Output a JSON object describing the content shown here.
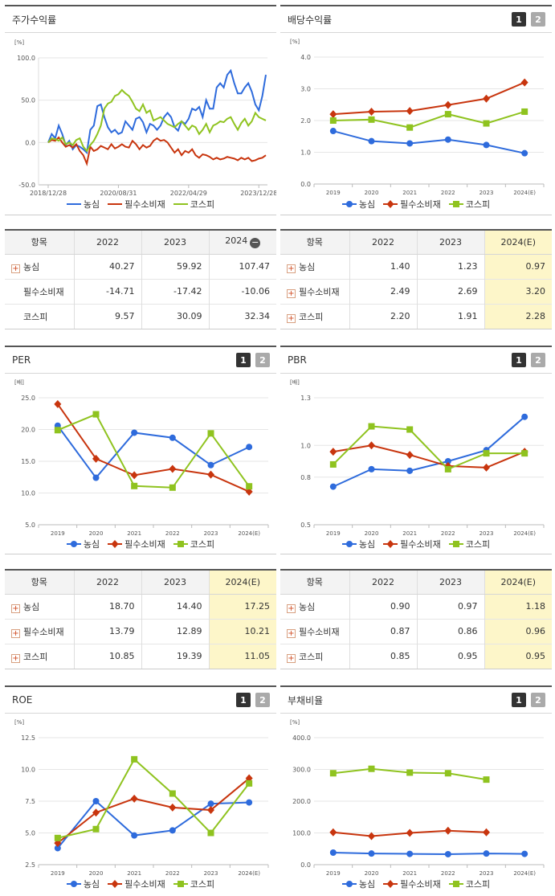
{
  "colors": {
    "nongshim": "#2e6bdc",
    "consumer": "#c8350e",
    "kospi": "#8fc31f"
  },
  "panels": [
    {
      "id": "stock",
      "title": "주가수익률",
      "tabs": [],
      "legend": [
        "농심",
        "필수소비재",
        "코스피"
      ],
      "chart_data": {
        "type": "line",
        "unit": "[%]",
        "ylim": [
          -50,
          100
        ],
        "yticks": [
          "100.0",
          "50.0",
          "0.0",
          "-50.0"
        ],
        "xticks": [
          "2018/12/28",
          "2020/08/31",
          "2022/04/29",
          "2023/12/28"
        ],
        "series": [
          {
            "name": "농심",
            "values": [
              0,
              10,
              5,
              20,
              10,
              -3,
              2,
              -8,
              -3,
              -5,
              -8,
              -12,
              15,
              20,
              43,
              45,
              30,
              18,
              12,
              15,
              10,
              12,
              25,
              20,
              15,
              28,
              30,
              24,
              12,
              22,
              20,
              15,
              20,
              30,
              35,
              30,
              18,
              14,
              25,
              22,
              28,
              40,
              38,
              42,
              30,
              50,
              40,
              40,
              65,
              70,
              65,
              80,
              85,
              70,
              58,
              58,
              65,
              70,
              60,
              45,
              38,
              55,
              80
            ]
          },
          {
            "name": "필수소비재",
            "values": [
              0,
              3,
              2,
              6,
              0,
              -5,
              -3,
              -6,
              -2,
              -10,
              -15,
              -25,
              -5,
              -10,
              -8,
              -4,
              -6,
              -8,
              -2,
              -7,
              -5,
              -2,
              -5,
              -6,
              2,
              -2,
              -8,
              -3,
              -6,
              -4,
              2,
              5,
              2,
              3,
              0,
              -6,
              -12,
              -8,
              -15,
              -10,
              -12,
              -8,
              -15,
              -18,
              -14,
              -15,
              -17,
              -20,
              -18,
              -20,
              -19,
              -17,
              -18,
              -19,
              -21,
              -18,
              -20,
              -18,
              -22,
              -21,
              -19,
              -18,
              -15
            ]
          },
          {
            "name": "코스피",
            "values": [
              0,
              5,
              4,
              2,
              6,
              -2,
              0,
              -3,
              3,
              5,
              -5,
              -10,
              -3,
              2,
              10,
              20,
              40,
              46,
              48,
              55,
              57,
              62,
              58,
              55,
              48,
              40,
              37,
              45,
              35,
              38,
              26,
              28,
              30,
              26,
              22,
              20,
              18,
              22,
              25,
              20,
              15,
              20,
              18,
              10,
              15,
              22,
              12,
              20,
              22,
              25,
              24,
              28,
              30,
              22,
              15,
              23,
              28,
              20,
              25,
              35,
              30,
              28,
              26
            ]
          }
        ]
      }
    },
    {
      "id": "dividend",
      "title": "배당수익률",
      "tabs": [
        "1",
        "2"
      ],
      "legend": [
        "농심",
        "필수소비재",
        "코스피"
      ],
      "chart_data": {
        "type": "line",
        "unit": "[%]",
        "ylim": [
          0,
          4
        ],
        "yticks": [
          "4.0",
          "3.0",
          "2.0",
          "1.0",
          "0.0"
        ],
        "categories": [
          "2019",
          "2020",
          "2021",
          "2022",
          "2023",
          "2024(E)"
        ],
        "series": [
          {
            "name": "농심",
            "values": [
              1.67,
              1.35,
              1.28,
              1.4,
              1.23,
              0.97
            ]
          },
          {
            "name": "필수소비재",
            "values": [
              2.2,
              2.28,
              2.3,
              2.49,
              2.69,
              3.2
            ]
          },
          {
            "name": "코스피",
            "values": [
              2.0,
              2.03,
              1.78,
              2.2,
              1.91,
              2.28
            ]
          }
        ]
      }
    },
    {
      "id": "per",
      "title": "PER",
      "tabs": [
        "1",
        "2"
      ],
      "legend": [
        "농심",
        "필수소비재",
        "코스피"
      ],
      "chart_data": {
        "type": "line",
        "unit": "[배]",
        "ylim": [
          5,
          25
        ],
        "yticks": [
          "25.0",
          "20.0",
          "15.0",
          "10.0",
          "5.0"
        ],
        "categories": [
          "2019",
          "2020",
          "2021",
          "2022",
          "2023",
          "2024(E)"
        ],
        "series": [
          {
            "name": "농심",
            "values": [
              20.6,
              12.4,
              19.5,
              18.7,
              14.4,
              17.25
            ]
          },
          {
            "name": "필수소비재",
            "values": [
              24.0,
              15.4,
              12.8,
              13.79,
              12.89,
              10.21
            ]
          },
          {
            "name": "코스피",
            "values": [
              19.9,
              22.4,
              11.1,
              10.85,
              19.39,
              11.05
            ]
          }
        ]
      }
    },
    {
      "id": "pbr",
      "title": "PBR",
      "tabs": [
        "1",
        "2"
      ],
      "legend": [
        "농심",
        "필수소비재",
        "코스피"
      ],
      "chart_data": {
        "type": "line",
        "unit": "[배]",
        "ylim": [
          0.5,
          1.3
        ],
        "yticks": [
          "1.3",
          "1.0",
          "0.8",
          "0.5"
        ],
        "categories": [
          "2019",
          "2020",
          "2021",
          "2022",
          "2023",
          "2024(E)"
        ],
        "series": [
          {
            "name": "농심",
            "values": [
              0.74,
              0.85,
              0.84,
              0.9,
              0.97,
              1.18
            ]
          },
          {
            "name": "필수소비재",
            "values": [
              0.96,
              1.0,
              0.94,
              0.87,
              0.86,
              0.96
            ]
          },
          {
            "name": "코스피",
            "values": [
              0.88,
              1.12,
              1.1,
              0.85,
              0.95,
              0.95
            ]
          }
        ]
      }
    },
    {
      "id": "roe",
      "title": "ROE",
      "tabs": [
        "1",
        "2"
      ],
      "legend": [
        "농심",
        "필수소비재",
        "코스피"
      ],
      "chart_data": {
        "type": "line",
        "unit": "[%]",
        "ylim": [
          2.5,
          12.5
        ],
        "yticks": [
          "12.5",
          "10.0",
          "7.5",
          "5.0",
          "2.5"
        ],
        "categories": [
          "2019",
          "2020",
          "2021",
          "2022",
          "2023",
          "2024(E)"
        ],
        "series": [
          {
            "name": "농심",
            "values": [
              3.8,
              7.5,
              4.8,
              5.2,
              7.3,
              7.4
            ]
          },
          {
            "name": "필수소비재",
            "values": [
              4.2,
              6.6,
              7.7,
              7.0,
              6.8,
              9.3
            ]
          },
          {
            "name": "코스피",
            "values": [
              4.6,
              5.3,
              10.8,
              8.1,
              5.0,
              8.9
            ]
          }
        ]
      }
    },
    {
      "id": "debt",
      "title": "부채비율",
      "tabs": [
        "1",
        "2"
      ],
      "legend": [
        "농심",
        "필수소비재",
        "코스피"
      ],
      "chart_data": {
        "type": "line",
        "unit": "[%]",
        "ylim": [
          0,
          400
        ],
        "yticks": [
          "400.0",
          "300.0",
          "200.0",
          "100.0",
          "0.0"
        ],
        "categories": [
          "2019",
          "2020",
          "2021",
          "2022",
          "2023",
          "2024(E)"
        ],
        "series": [
          {
            "name": "농심",
            "values": [
              38,
              35,
              34,
              33,
              35,
              34
            ]
          },
          {
            "name": "필수소비재",
            "values": [
              102,
              90,
              100,
              107,
              102,
              null
            ]
          },
          {
            "name": "코스피",
            "values": [
              288,
              302,
              290,
              288,
              268,
              null
            ]
          }
        ]
      }
    }
  ],
  "tables": [
    {
      "id": "stock-table",
      "headers": [
        "항목",
        "2022",
        "2023",
        "2024"
      ],
      "highlight": false,
      "collapse": true,
      "rows": [
        {
          "plus": true,
          "name": "농심",
          "values": [
            "40.27",
            "59.92",
            "107.47"
          ]
        },
        {
          "plus": false,
          "name": "필수소비재",
          "values": [
            "-14.71",
            "-17.42",
            "-10.06"
          ]
        },
        {
          "plus": false,
          "name": "코스피",
          "values": [
            "9.57",
            "30.09",
            "32.34"
          ]
        }
      ]
    },
    {
      "id": "dividend-table",
      "headers": [
        "항목",
        "2022",
        "2023",
        "2024(E)"
      ],
      "highlight": true,
      "collapse": false,
      "rows": [
        {
          "plus": true,
          "name": "농심",
          "values": [
            "1.40",
            "1.23",
            "0.97"
          ]
        },
        {
          "plus": true,
          "name": "필수소비재",
          "values": [
            "2.49",
            "2.69",
            "3.20"
          ]
        },
        {
          "plus": true,
          "name": "코스피",
          "values": [
            "2.20",
            "1.91",
            "2.28"
          ]
        }
      ]
    },
    {
      "id": "per-table",
      "headers": [
        "항목",
        "2022",
        "2023",
        "2024(E)"
      ],
      "highlight": true,
      "collapse": false,
      "rows": [
        {
          "plus": true,
          "name": "농심",
          "values": [
            "18.70",
            "14.40",
            "17.25"
          ]
        },
        {
          "plus": true,
          "name": "필수소비재",
          "values": [
            "13.79",
            "12.89",
            "10.21"
          ]
        },
        {
          "plus": true,
          "name": "코스피",
          "values": [
            "10.85",
            "19.39",
            "11.05"
          ]
        }
      ]
    },
    {
      "id": "pbr-table",
      "headers": [
        "항목",
        "2022",
        "2023",
        "2024(E)"
      ],
      "highlight": true,
      "collapse": false,
      "rows": [
        {
          "plus": true,
          "name": "농심",
          "values": [
            "0.90",
            "0.97",
            "1.18"
          ]
        },
        {
          "plus": true,
          "name": "필수소비재",
          "values": [
            "0.87",
            "0.86",
            "0.96"
          ]
        },
        {
          "plus": true,
          "name": "코스피",
          "values": [
            "0.85",
            "0.95",
            "0.95"
          ]
        }
      ]
    }
  ]
}
